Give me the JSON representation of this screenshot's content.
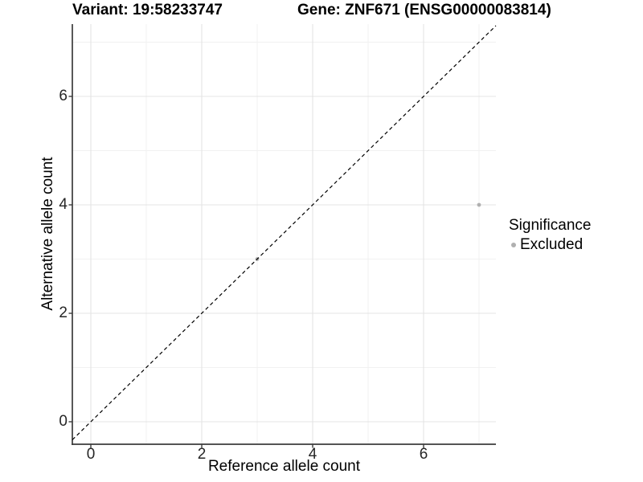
{
  "header": {
    "title_left": "Variant: 19:58233747",
    "title_right": "Gene: ZNF671 (ENSG00000083814)"
  },
  "chart_data": {
    "type": "scatter",
    "xlabel": "Reference allele count",
    "ylabel": "Alternative allele count",
    "x_ticks": [
      0,
      2,
      4,
      6
    ],
    "y_ticks": [
      0,
      2,
      4,
      6
    ],
    "x_minor_gridlines": [
      1,
      3,
      5,
      7
    ],
    "y_minor_gridlines": [
      1,
      3,
      5,
      7
    ],
    "xlim": [
      -0.33,
      7.3
    ],
    "ylim": [
      -0.41,
      7.33
    ],
    "grid": "on",
    "series": [
      {
        "name": "Excluded",
        "color": "#b0b0b0",
        "points": [
          {
            "x": 3,
            "y": 3
          },
          {
            "x": 7,
            "y": 4
          }
        ]
      }
    ],
    "reference_line": {
      "kind": "identity y=x",
      "style": "dashed",
      "color": "#000000"
    },
    "legend": {
      "title": "Significance",
      "position": "right",
      "items": [
        {
          "label": "Excluded",
          "color": "#b0b0b0"
        }
      ]
    }
  },
  "style": {
    "axis_color": "#3c3c3c",
    "grid_major_color": "#e4e4e4",
    "grid_minor_color": "#f1f1f1",
    "background": "#ffffff"
  }
}
